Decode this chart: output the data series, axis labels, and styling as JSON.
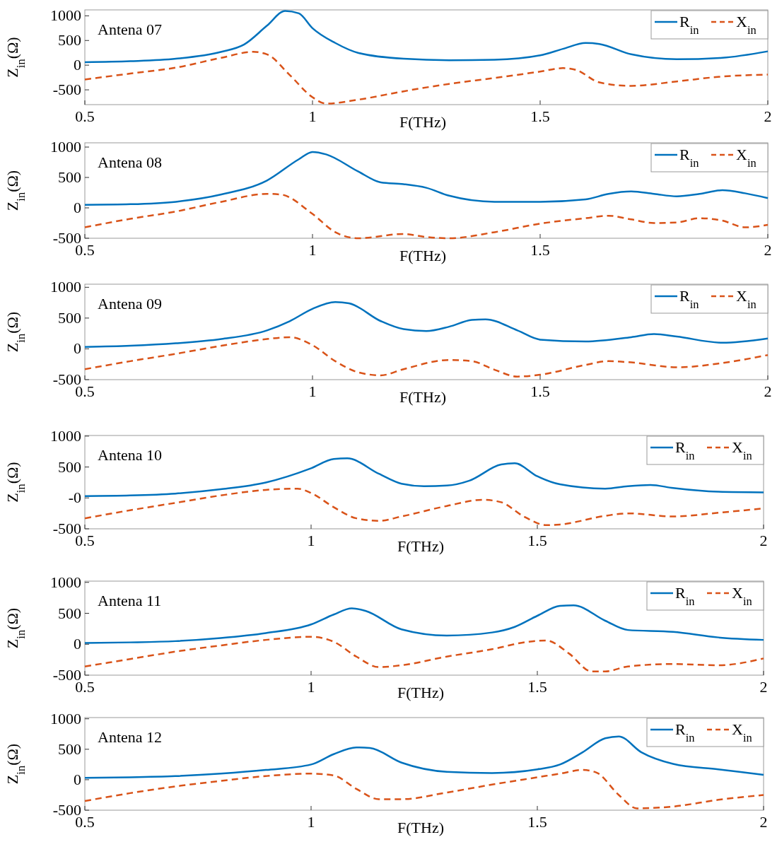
{
  "chart_data": [
    {
      "type": "line",
      "annotations": [
        "Antena 07"
      ],
      "xlabel": "F(THz)",
      "ylabel": "Z$_{in}$(Ω)",
      "xlim": [
        0.5,
        2
      ],
      "xticks": [
        0.5,
        1,
        1.5,
        2
      ],
      "ylim": [
        -800,
        1120
      ],
      "yticks": [
        -500,
        0,
        500,
        1000
      ],
      "legend": "top right",
      "grid": false,
      "series": [
        {
          "name": "R$_{in}$",
          "color": "#0072bd",
          "line_style": "solid",
          "x": [
            0.5,
            0.6,
            0.7,
            0.8,
            0.85,
            0.9,
            0.94,
            0.97,
            1.0,
            1.05,
            1.1,
            1.2,
            1.3,
            1.4,
            1.5,
            1.55,
            1.6,
            1.63,
            1.7,
            1.8,
            1.9,
            2.0
          ],
          "values": [
            60,
            80,
            130,
            270,
            420,
            800,
            1100,
            1050,
            750,
            450,
            250,
            130,
            100,
            110,
            200,
            330,
            450,
            430,
            220,
            120,
            150,
            280
          ]
        },
        {
          "name": "X$_{in}$",
          "color": "#d95319",
          "line_style": "dashed",
          "x": [
            0.5,
            0.6,
            0.7,
            0.8,
            0.87,
            0.9,
            0.95,
            1.0,
            1.03,
            1.1,
            1.2,
            1.3,
            1.4,
            1.5,
            1.55,
            1.58,
            1.63,
            1.7,
            1.8,
            1.9,
            2.0
          ],
          "values": [
            -290,
            -170,
            -50,
            150,
            270,
            220,
            -200,
            -650,
            -780,
            -700,
            -530,
            -380,
            -260,
            -130,
            -60,
            -100,
            -350,
            -420,
            -330,
            -230,
            -190
          ]
        }
      ]
    },
    {
      "type": "line",
      "annotations": [
        "Antena 08"
      ],
      "xlabel": "F(THz)",
      "ylabel": "Z$_{in}$(Ω)",
      "xlim": [
        0.5,
        2
      ],
      "xticks": [
        0.5,
        1,
        1.5,
        2
      ],
      "ylim": [
        -500,
        1070
      ],
      "yticks": [
        -500,
        0,
        500,
        1000
      ],
      "legend": "top right",
      "grid": false,
      "series": [
        {
          "name": "R$_{in}$",
          "color": "#0072bd",
          "line_style": "solid",
          "x": [
            0.5,
            0.6,
            0.7,
            0.8,
            0.9,
            0.97,
            1.0,
            1.03,
            1.1,
            1.15,
            1.2,
            1.25,
            1.3,
            1.4,
            1.5,
            1.6,
            1.65,
            1.7,
            1.75,
            1.8,
            1.85,
            1.9,
            1.95,
            2.0
          ],
          "values": [
            50,
            60,
            100,
            220,
            450,
            800,
            920,
            880,
            600,
            420,
            390,
            330,
            200,
            100,
            100,
            140,
            230,
            270,
            230,
            190,
            230,
            290,
            240,
            160
          ]
        },
        {
          "name": "X$_{in}$",
          "color": "#d95319",
          "line_style": "dashed",
          "x": [
            0.5,
            0.6,
            0.7,
            0.8,
            0.9,
            0.93,
            1.0,
            1.05,
            1.1,
            1.2,
            1.25,
            1.3,
            1.4,
            1.5,
            1.6,
            1.65,
            1.7,
            1.75,
            1.8,
            1.85,
            1.9,
            1.95,
            2.0
          ],
          "values": [
            -320,
            -180,
            -60,
            100,
            230,
            220,
            -100,
            -400,
            -500,
            -430,
            -480,
            -500,
            -400,
            -260,
            -170,
            -130,
            -190,
            -250,
            -240,
            -170,
            -210,
            -320,
            -280
          ]
        }
      ]
    },
    {
      "type": "line",
      "annotations": [
        "Antena 09"
      ],
      "xlabel": "F(THz)",
      "ylabel": "Z$_{in}$(Ω)",
      "xlim": [
        0.5,
        2
      ],
      "xticks": [
        0.5,
        1,
        1.5,
        2
      ],
      "ylim": [
        -500,
        1050
      ],
      "yticks": [
        -500,
        0,
        500,
        1000
      ],
      "legend": "top right",
      "grid": false,
      "series": [
        {
          "name": "R$_{in}$",
          "color": "#0072bd",
          "line_style": "solid",
          "x": [
            0.5,
            0.6,
            0.7,
            0.8,
            0.9,
            0.95,
            1.0,
            1.05,
            1.08,
            1.15,
            1.2,
            1.25,
            1.3,
            1.35,
            1.38,
            1.45,
            1.5,
            1.6,
            1.7,
            1.75,
            1.8,
            1.9,
            2.0
          ],
          "values": [
            30,
            50,
            90,
            160,
            300,
            450,
            650,
            760,
            740,
            450,
            320,
            290,
            360,
            470,
            480,
            300,
            150,
            120,
            190,
            240,
            200,
            100,
            170
          ]
        },
        {
          "name": "X$_{in}$",
          "color": "#d95319",
          "line_style": "dashed",
          "x": [
            0.5,
            0.6,
            0.7,
            0.8,
            0.9,
            0.95,
            1.0,
            1.05,
            1.1,
            1.15,
            1.2,
            1.3,
            1.35,
            1.4,
            1.45,
            1.5,
            1.6,
            1.65,
            1.7,
            1.8,
            1.9,
            2.0
          ],
          "values": [
            -330,
            -200,
            -80,
            50,
            160,
            190,
            60,
            -200,
            -380,
            -430,
            -330,
            -180,
            -200,
            -340,
            -450,
            -420,
            -260,
            -200,
            -220,
            -300,
            -230,
            -100
          ]
        }
      ]
    },
    {
      "type": "line",
      "annotations": [
        "Antena 10"
      ],
      "xlabel": "F(THz)",
      "ylabel": "Z$_{in}$(Ω)",
      "xlim": [
        0.5,
        2
      ],
      "xticks": [
        0.5,
        1,
        1.5,
        2
      ],
      "ylim": [
        -500,
        1010
      ],
      "yticks": [
        -500,
        {
          "value": 0,
          "label": "-0"
        },
        500,
        1000
      ],
      "legend": "top right",
      "grid": false,
      "series": [
        {
          "name": "R$_{in}$",
          "color": "#0072bd",
          "line_style": "solid",
          "x": [
            0.5,
            0.6,
            0.7,
            0.8,
            0.9,
            1.0,
            1.05,
            1.08,
            1.15,
            1.2,
            1.25,
            1.3,
            1.35,
            1.42,
            1.45,
            1.5,
            1.55,
            1.65,
            1.7,
            1.75,
            1.8,
            1.9,
            2.0
          ],
          "values": [
            30,
            40,
            70,
            140,
            250,
            480,
            630,
            640,
            390,
            230,
            190,
            200,
            280,
            540,
            560,
            350,
            220,
            150,
            190,
            210,
            160,
            100,
            90
          ]
        },
        {
          "name": "X$_{in}$",
          "color": "#d95319",
          "line_style": "dashed",
          "x": [
            0.5,
            0.6,
            0.7,
            0.8,
            0.9,
            0.97,
            1.0,
            1.05,
            1.1,
            1.15,
            1.2,
            1.3,
            1.38,
            1.42,
            1.47,
            1.52,
            1.55,
            1.65,
            1.7,
            1.8,
            1.9,
            2.0
          ],
          "values": [
            -330,
            -200,
            -80,
            40,
            130,
            150,
            80,
            -150,
            -330,
            -370,
            -300,
            -130,
            -30,
            -70,
            -300,
            -440,
            -430,
            -290,
            -250,
            -300,
            -240,
            -170
          ]
        }
      ]
    },
    {
      "type": "line",
      "annotations": [
        "Antena 11"
      ],
      "xlabel": "F(THz)",
      "ylabel": "Z$_{in}$(Ω)",
      "xlim": [
        0.5,
        2
      ],
      "xticks": [
        0.5,
        1,
        1.5,
        2
      ],
      "ylim": [
        -500,
        1020
      ],
      "yticks": [
        -500,
        0,
        500,
        1000
      ],
      "legend": "top right",
      "grid": false,
      "series": [
        {
          "name": "R$_{in}$",
          "color": "#0072bd",
          "line_style": "solid",
          "x": [
            0.5,
            0.6,
            0.7,
            0.8,
            0.9,
            1.0,
            1.05,
            1.09,
            1.12,
            1.2,
            1.3,
            1.4,
            1.45,
            1.5,
            1.55,
            1.58,
            1.65,
            1.7,
            1.8,
            1.9,
            2.0
          ],
          "values": [
            20,
            30,
            50,
            100,
            180,
            320,
            480,
            580,
            540,
            240,
            140,
            190,
            280,
            460,
            620,
            630,
            380,
            230,
            200,
            110,
            70
          ]
        },
        {
          "name": "X$_{in}$",
          "color": "#d95319",
          "line_style": "dashed",
          "x": [
            0.5,
            0.6,
            0.7,
            0.8,
            0.9,
            1.0,
            1.05,
            1.1,
            1.15,
            1.2,
            1.3,
            1.4,
            1.48,
            1.52,
            1.57,
            1.62,
            1.65,
            1.7,
            1.8,
            1.9,
            2.0
          ],
          "values": [
            -360,
            -240,
            -120,
            -20,
            70,
            120,
            40,
            -200,
            -370,
            -340,
            -200,
            -80,
            40,
            60,
            -150,
            -440,
            -440,
            -360,
            -320,
            -340,
            -230
          ]
        }
      ]
    },
    {
      "type": "line",
      "annotations": [
        "Antena 12"
      ],
      "xlabel": "F(THz)",
      "ylabel": "Z$_{in}$(Ω)",
      "xlim": [
        0.5,
        2
      ],
      "xticks": [
        0.5,
        1,
        1.5,
        2
      ],
      "ylim": [
        -500,
        1020
      ],
      "yticks": [
        -500,
        0,
        500,
        1000
      ],
      "legend": "top right",
      "grid": false,
      "series": [
        {
          "name": "R$_{in}$",
          "color": "#0072bd",
          "line_style": "solid",
          "x": [
            0.5,
            0.6,
            0.7,
            0.8,
            0.9,
            1.0,
            1.05,
            1.1,
            1.13,
            1.2,
            1.3,
            1.4,
            1.5,
            1.55,
            1.6,
            1.65,
            1.68,
            1.73,
            1.8,
            1.9,
            2.0
          ],
          "values": [
            30,
            40,
            60,
            100,
            160,
            250,
            420,
            530,
            520,
            280,
            130,
            110,
            170,
            250,
            450,
            680,
            710,
            450,
            260,
            170,
            80
          ]
        },
        {
          "name": "X$_{in}$",
          "color": "#d95319",
          "line_style": "dashed",
          "x": [
            0.5,
            0.6,
            0.7,
            0.8,
            0.9,
            1.0,
            1.05,
            1.1,
            1.15,
            1.2,
            1.3,
            1.4,
            1.5,
            1.55,
            1.6,
            1.63,
            1.68,
            1.72,
            1.8,
            1.9,
            2.0
          ],
          "values": [
            -350,
            -220,
            -110,
            -20,
            60,
            100,
            70,
            -150,
            -320,
            -320,
            -210,
            -80,
            40,
            100,
            160,
            120,
            -250,
            -470,
            -440,
            -330,
            -250
          ]
        }
      ]
    }
  ]
}
